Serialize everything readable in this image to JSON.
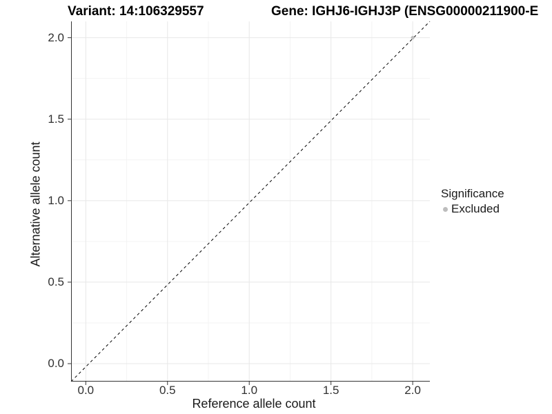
{
  "titles": {
    "variant": "Variant: 14:106329557",
    "gene": "Gene: IGHJ6-IGHJ3P (ENSG00000211900-E"
  },
  "legend": {
    "title": "Significance",
    "items": [
      {
        "label": "Excluded",
        "color": "#bdbdbd"
      }
    ]
  },
  "chart_data": {
    "type": "scatter",
    "title": "Variant: 14:106329557   Gene: IGHJ6-IGHJ3P (ENSG00000211900-E",
    "xlabel": "Reference allele count",
    "ylabel": "Alternative allele count",
    "xlim": [
      -0.09,
      2.105
    ],
    "ylim": [
      -0.11,
      2.1
    ],
    "x_ticks": [
      0.0,
      0.5,
      1.0,
      1.5,
      2.0
    ],
    "y_ticks": [
      0.0,
      0.5,
      1.0,
      1.5,
      2.0
    ],
    "minor_ticks": [
      0.25,
      0.75,
      1.25,
      1.75
    ],
    "grid": true,
    "legend_position": "right",
    "series": [
      {
        "name": "Excluded",
        "color": "#bdbdbd",
        "points": [
          [
            2.0,
            2.0
          ]
        ]
      }
    ],
    "reference_line": {
      "type": "identity",
      "style": "dashed",
      "color": "#000000"
    },
    "colors": {
      "grid_major": "#e7e7e7",
      "grid_minor": "#f3f3f3",
      "axis": "#333333",
      "point": "#bdbdbd"
    }
  }
}
